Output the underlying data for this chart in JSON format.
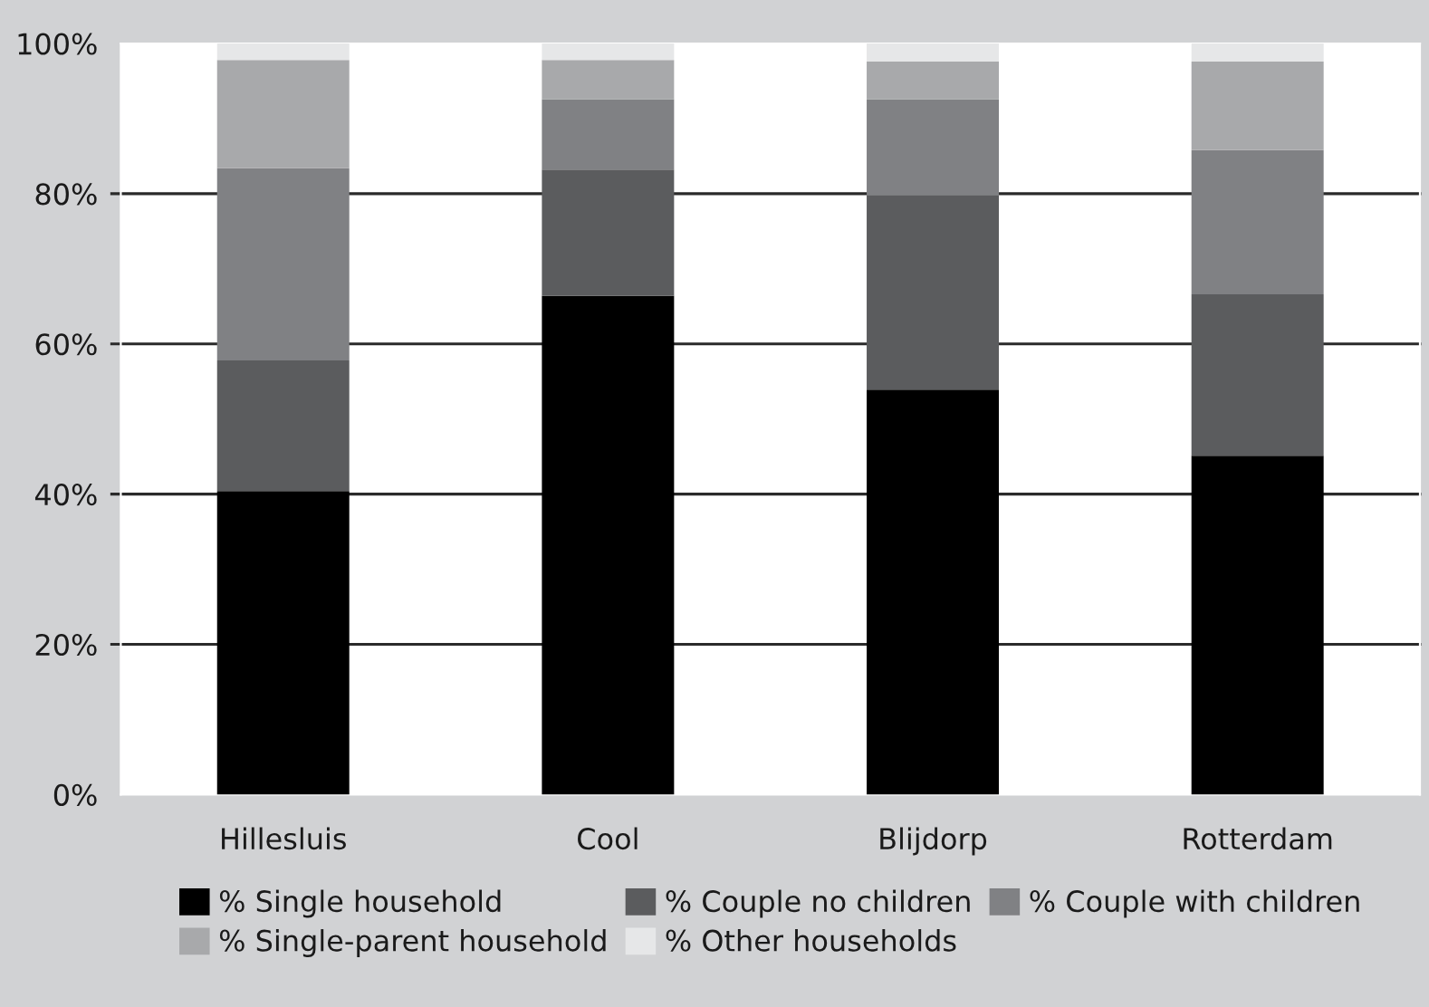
{
  "chart_data": {
    "type": "bar",
    "stacked": true,
    "categories": [
      "Hillesluis",
      "Cool",
      "Blijdorp",
      "Rotterdam"
    ],
    "series": [
      {
        "name": "% Single household",
        "color": "#000000",
        "values": [
          40.4,
          66.4,
          53.9,
          45.1
        ]
      },
      {
        "name": "% Couple no children",
        "color": "#5b5c5e",
        "values": [
          17.4,
          16.8,
          25.9,
          21.5
        ]
      },
      {
        "name": "% Couple with children",
        "color": "#808184",
        "values": [
          25.6,
          9.4,
          12.8,
          19.2
        ]
      },
      {
        "name": "% Single-parent household",
        "color": "#a8a9ab",
        "values": [
          14.4,
          5.2,
          5.0,
          11.8
        ]
      },
      {
        "name": "% Other households",
        "color": "#e6e7e8",
        "values": [
          2.2,
          2.2,
          2.4,
          2.4
        ]
      }
    ],
    "ylim": [
      0,
      100
    ],
    "yticks": [
      {
        "value": 0,
        "label": "0%"
      },
      {
        "value": 20,
        "label": "20%"
      },
      {
        "value": 40,
        "label": "40%"
      },
      {
        "value": 60,
        "label": "60%"
      },
      {
        "value": 80,
        "label": "80%"
      },
      {
        "value": 100,
        "label": "100%"
      }
    ],
    "grid": "y",
    "legend": "bottom"
  }
}
